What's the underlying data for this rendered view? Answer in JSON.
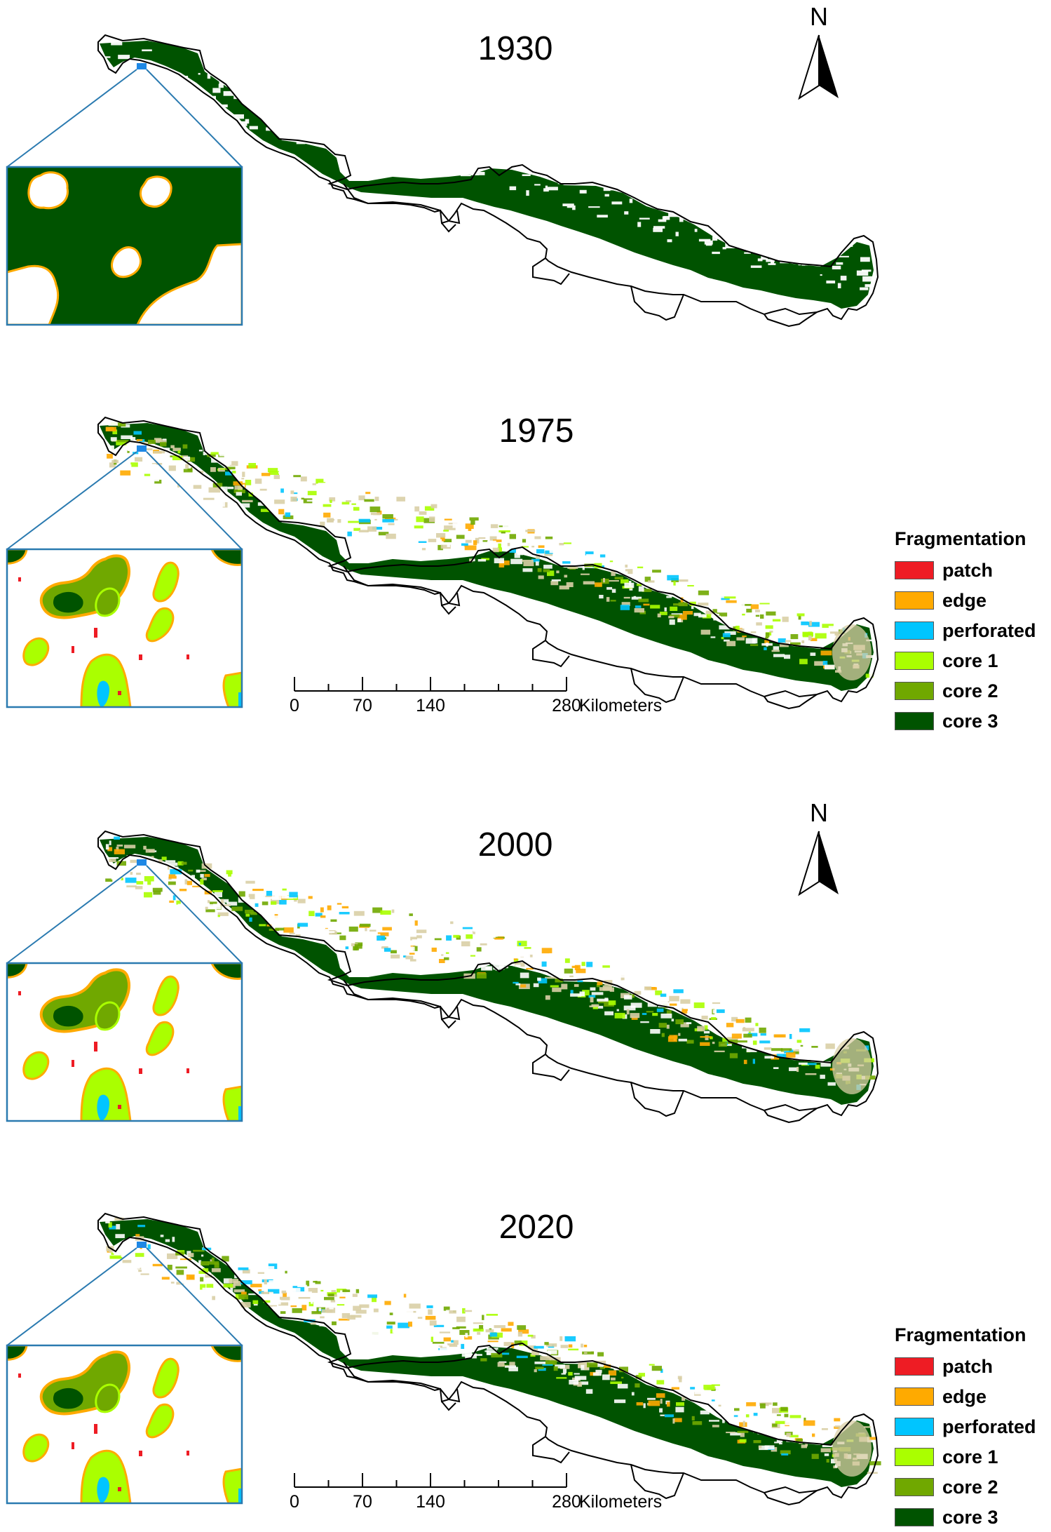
{
  "panels": [
    {
      "year": "1930",
      "style": "intact",
      "has_north": true,
      "has_legend": false,
      "has_scale": false
    },
    {
      "year": "1975",
      "style": "fragmented",
      "has_north": false,
      "has_legend": true,
      "has_scale": true
    },
    {
      "year": "2000",
      "style": "fragmented",
      "has_north": true,
      "has_legend": false,
      "has_scale": false
    },
    {
      "year": "2020",
      "style": "fragmented",
      "has_north": false,
      "has_legend": true,
      "has_scale": true
    }
  ],
  "north_arrow": {
    "letter": "N"
  },
  "legend": {
    "title": "Fragmentation",
    "items": [
      {
        "label": "patch",
        "color": "#ee1c24"
      },
      {
        "label": "edge",
        "color": "#ffaa00"
      },
      {
        "label": "perforated",
        "color": "#00c5ff"
      },
      {
        "label": "core 1",
        "color": "#aaff00"
      },
      {
        "label": "core 2",
        "color": "#70a800"
      },
      {
        "label": "core 3",
        "color": "#005300"
      }
    ]
  },
  "scale_bar": {
    "ticks": [
      "0",
      "70",
      "140",
      "280"
    ],
    "unit": "Kilometers"
  },
  "colors": {
    "land_bg": "#ffffff",
    "boundary": "#000000",
    "inset_frame": "#2a7ab0",
    "inset_marker": "#1e88e5",
    "sparse_patch": "#d9cfa6"
  }
}
